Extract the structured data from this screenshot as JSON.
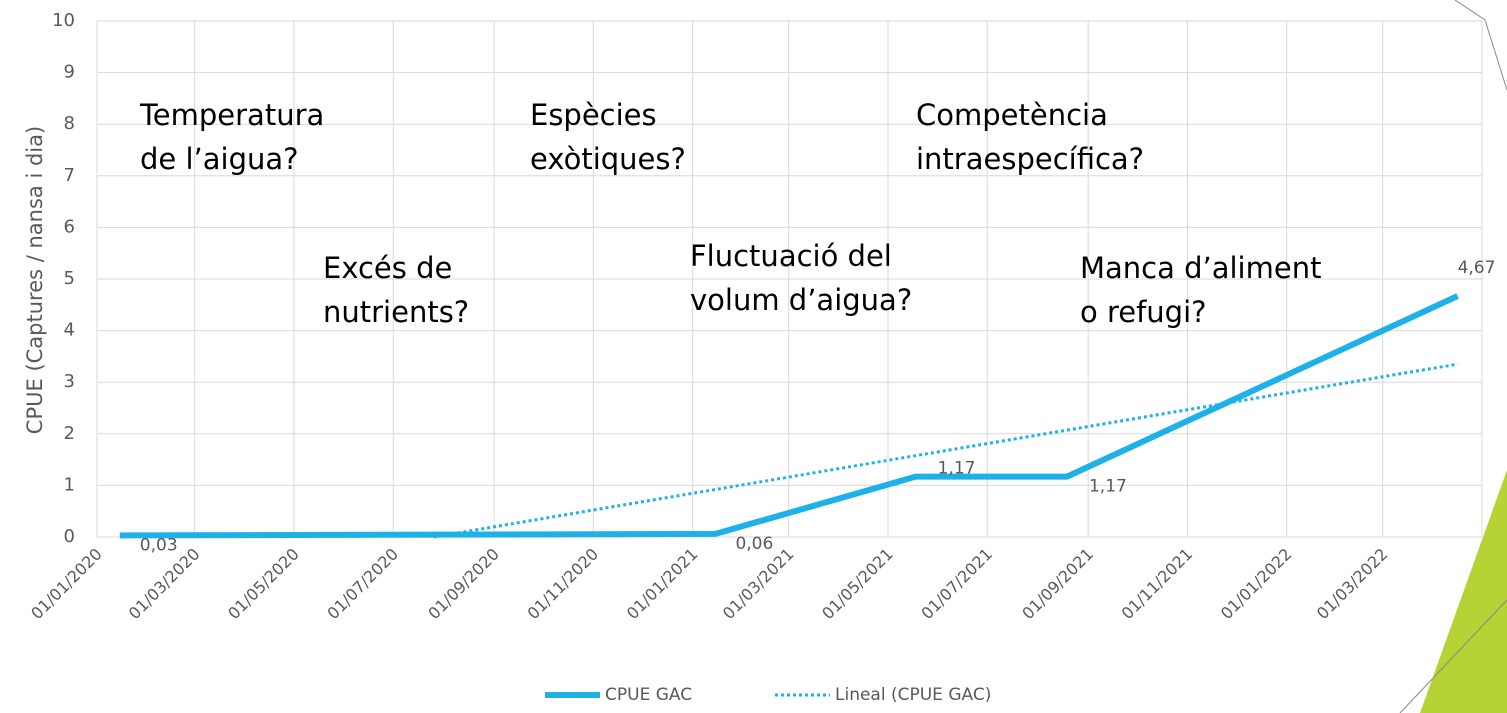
{
  "chart_data": {
    "type": "line",
    "y_label": "CPUE (Captures / nansa i dia)",
    "x": [
      "15/01/2020",
      "15/01/2021",
      "18/05/2021",
      "19/08/2021",
      "16/04/2022"
    ],
    "xlim": [
      "01/01/2020",
      "01/05/2022"
    ],
    "xticks": [
      "01/01/2020",
      "01/03/2020",
      "01/05/2020",
      "01/07/2020",
      "01/09/2020",
      "01/11/2020",
      "01/01/2021",
      "01/03/2021",
      "01/05/2021",
      "01/07/2021",
      "01/09/2021",
      "01/11/2021",
      "01/01/2022",
      "01/03/2022"
    ],
    "ylim": [
      0,
      10
    ],
    "yticks": [
      0,
      1,
      2,
      3,
      4,
      5,
      6,
      7,
      8,
      9,
      10
    ],
    "grid": true,
    "legend": "bottom",
    "series": [
      {
        "name": "CPUE GAC",
        "color": "#1eb0e8",
        "values": [
          0.03,
          0.06,
          1.17,
          1.17,
          4.67
        ],
        "value_labels": [
          "0,03",
          "0,06",
          "1,17",
          "1,17",
          "4,67"
        ]
      },
      {
        "name": "Lineal (CPUE GAC)",
        "color": "#1eb0e8",
        "dotted": true,
        "x": [
          "26/07/2020",
          "16/04/2022"
        ],
        "values": [
          0,
          3.35
        ]
      }
    ],
    "annotations": [
      {
        "lines": [
          "Temperatura",
          "de l’aigua?"
        ]
      },
      {
        "lines": [
          "Excés de",
          "nutrients?"
        ]
      },
      {
        "lines": [
          "Espècies",
          "exòtiques?"
        ]
      },
      {
        "lines": [
          "Fluctuació del",
          "volum d’aigua?"
        ]
      },
      {
        "lines": [
          "Competència",
          "intraespecífica?"
        ]
      },
      {
        "lines": [
          "Manca d’aliment",
          "o refugi?"
        ]
      }
    ]
  }
}
